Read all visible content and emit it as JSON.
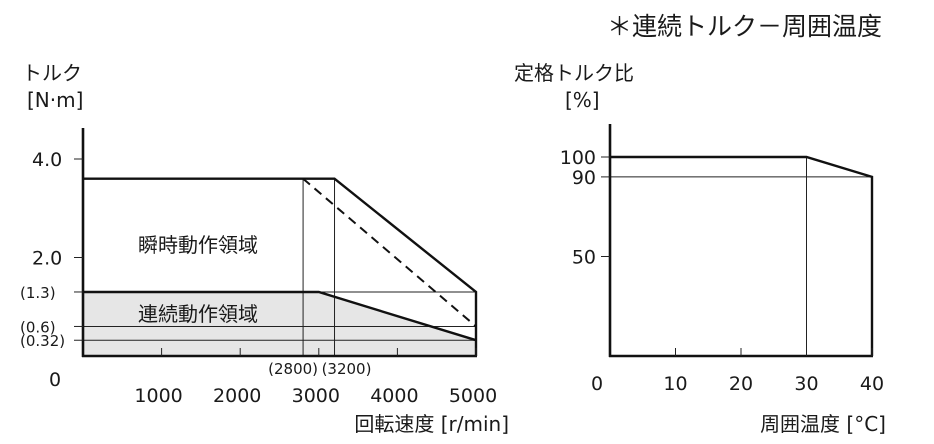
{
  "title": "＊連続トルク－周囲温度",
  "chart_data": [
    {
      "type": "area",
      "ylabel": "トルク",
      "yunit": "[N·m]",
      "xlabel": "回転速度 [r/min]",
      "origin_label": "0",
      "xlim": [
        0,
        5000
      ],
      "ylim": [
        0,
        4.6
      ],
      "x_ticks": [
        {
          "v": 1000,
          "label": "1000"
        },
        {
          "v": 2000,
          "label": "2000"
        },
        {
          "v": 3000,
          "label": "3000"
        },
        {
          "v": 4000,
          "label": "4000"
        },
        {
          "v": 5000,
          "label": "5000"
        }
      ],
      "y_ticks": [
        {
          "v": 4.0,
          "label": "4.0"
        },
        {
          "v": 2.0,
          "label": "2.0"
        },
        {
          "v": 1.3,
          "label": "(1.3)"
        },
        {
          "v": 0.6,
          "label": "(0.6)"
        },
        {
          "v": 0.32,
          "label": "(0.32)"
        }
      ],
      "x_callouts": [
        {
          "v": 2800,
          "label": "(2800)"
        },
        {
          "v": 3200,
          "label": "(3200)"
        }
      ],
      "intermittent": {
        "name": "瞬時動作領域",
        "x": [
          0,
          3200,
          5000,
          5000
        ],
        "y": [
          3.6,
          3.6,
          1.3,
          0
        ]
      },
      "intermittent_dashed": {
        "x": [
          2800,
          5000
        ],
        "y": [
          3.6,
          0.6
        ]
      },
      "continuous": {
        "name": "連続動作領域",
        "x": [
          0,
          3000,
          5000
        ],
        "y": [
          1.3,
          1.3,
          0.32
        ]
      },
      "guides": [
        {
          "axis": "y",
          "v": 1.3
        },
        {
          "axis": "y",
          "v": 0.6
        },
        {
          "axis": "y",
          "v": 0.32
        },
        {
          "axis": "x",
          "v": 2800
        },
        {
          "axis": "x",
          "v": 3200
        }
      ],
      "fill_color": "#e6e6e6"
    },
    {
      "type": "line",
      "ylabel": "定格トルク比",
      "yunit": "[%]",
      "xlabel": "周囲温度 [°C]",
      "xlim": [
        0,
        40
      ],
      "ylim": [
        0,
        115
      ],
      "x_ticks": [
        {
          "v": 0,
          "label": "0"
        },
        {
          "v": 10,
          "label": "10"
        },
        {
          "v": 20,
          "label": "20"
        },
        {
          "v": 30,
          "label": "30"
        },
        {
          "v": 40,
          "label": "40"
        }
      ],
      "y_ticks": [
        {
          "v": 100,
          "label": "100"
        },
        {
          "v": 90,
          "label": "90"
        },
        {
          "v": 50,
          "label": "50"
        }
      ],
      "series": [
        {
          "x": [
            0,
            30,
            40,
            40
          ],
          "y": [
            100,
            100,
            90,
            0
          ]
        }
      ],
      "guides": [
        {
          "axis": "y",
          "v": 90
        },
        {
          "axis": "x",
          "v": 30
        }
      ]
    }
  ]
}
